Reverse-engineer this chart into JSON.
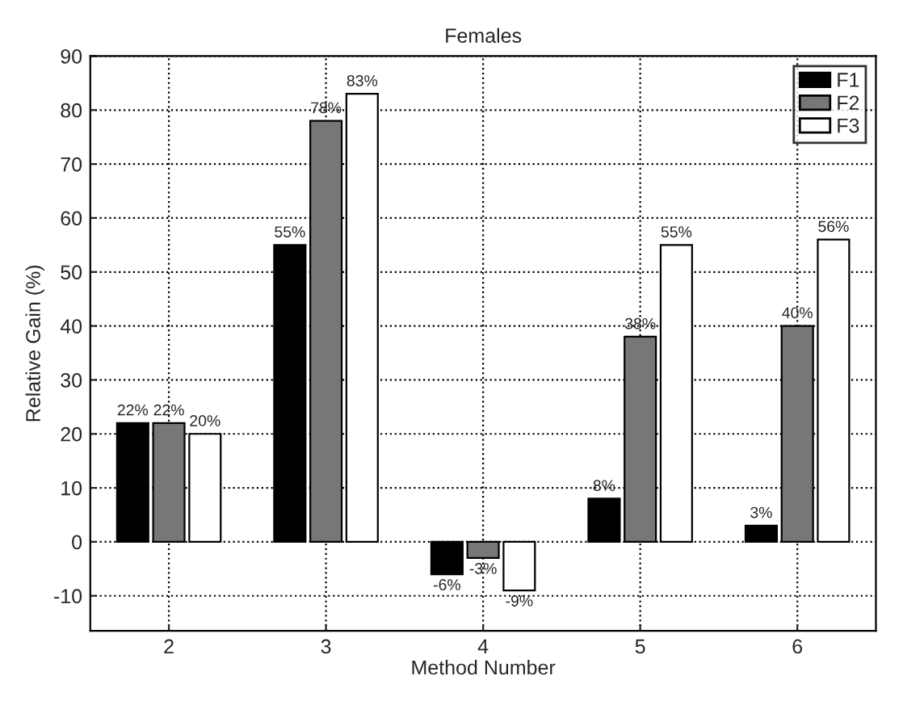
{
  "chart_data": {
    "type": "bar",
    "title": "Females",
    "xlabel": "Method Number",
    "ylabel": "Relative Gain (%)",
    "categories": [
      "2",
      "3",
      "4",
      "5",
      "6"
    ],
    "series": [
      {
        "name": "F1",
        "color": "#000000",
        "values": [
          22,
          55,
          -6,
          8,
          3
        ],
        "value_labels": [
          "22%",
          "55%",
          "-6%",
          "8%",
          "3%"
        ]
      },
      {
        "name": "F2",
        "color": "#777777",
        "values": [
          22,
          78,
          -3,
          38,
          40
        ],
        "value_labels": [
          "22%",
          "78%",
          "-3%",
          "38%",
          "40%"
        ]
      },
      {
        "name": "F3",
        "color": "#ffffff",
        "values": [
          20,
          83,
          -9,
          55,
          56
        ],
        "value_labels": [
          "20%",
          "83%",
          "-9%",
          "55%",
          "56%"
        ]
      }
    ],
    "ylim": [
      -16.5,
      90
    ],
    "yticks": [
      -10,
      0,
      10,
      20,
      30,
      40,
      50,
      60,
      70,
      80,
      90
    ],
    "grid": true,
    "legend": "top right"
  }
}
